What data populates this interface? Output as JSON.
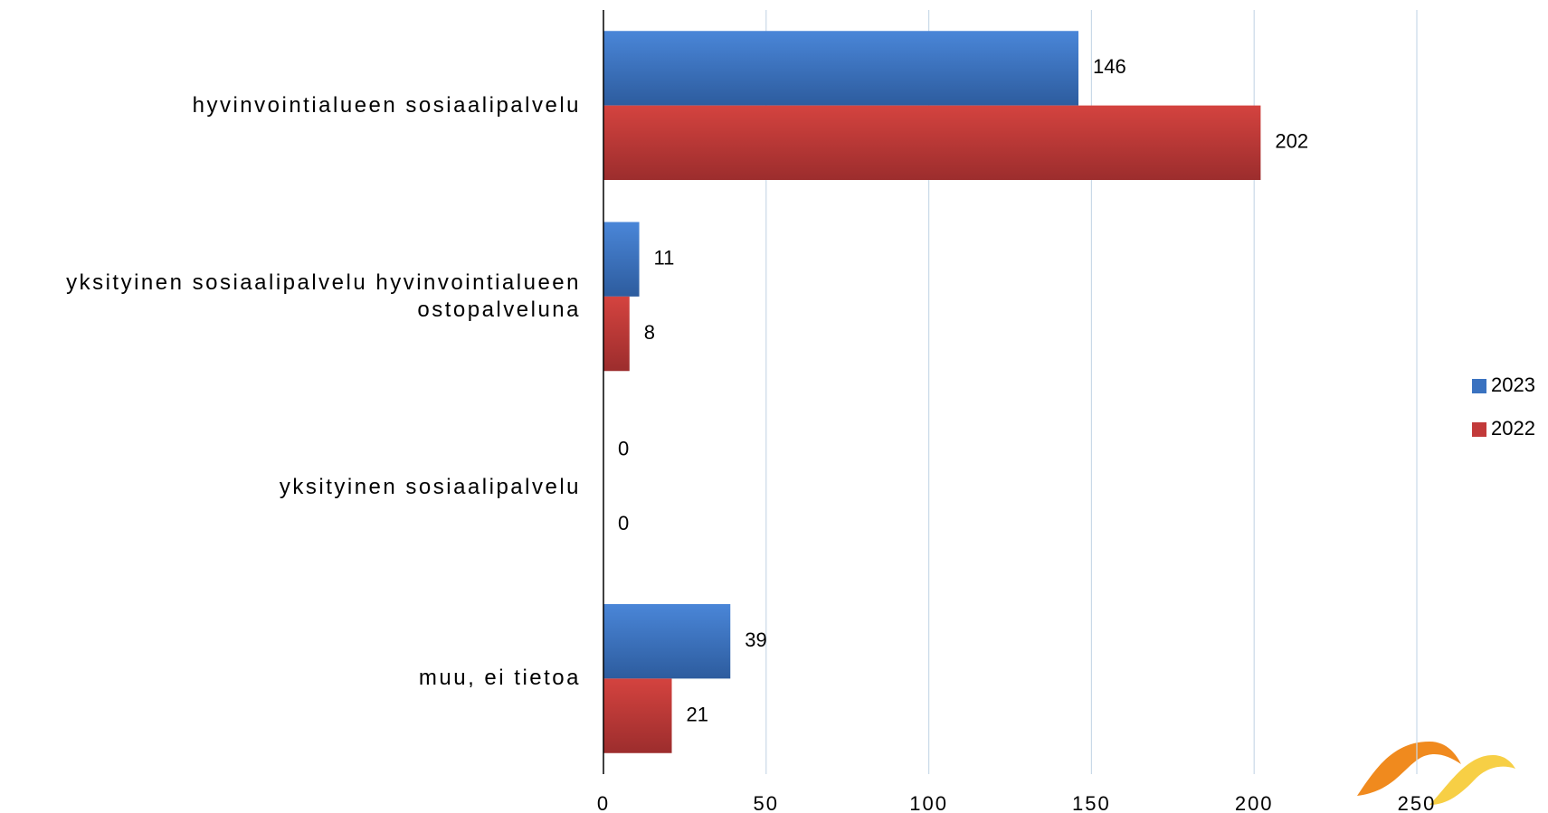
{
  "chart_data": {
    "type": "bar",
    "orientation": "horizontal",
    "categories": [
      "hyvinvointialueen sosiaalipalvelu",
      "yksityinen sosiaalipalvelu hyvinvointialueen ostopalveluna",
      "yksityinen sosiaalipalvelu",
      "muu, ei tietoa"
    ],
    "series": [
      {
        "name": "2023",
        "color": "#3a72c0",
        "values": [
          146,
          11,
          0,
          39
        ]
      },
      {
        "name": "2022",
        "color": "#c23a3a",
        "values": [
          202,
          8,
          0,
          21
        ]
      }
    ],
    "xlim": [
      0,
      250
    ],
    "xticks": [
      0,
      50,
      100,
      150,
      200,
      250
    ],
    "grid": true,
    "legend": "right"
  }
}
